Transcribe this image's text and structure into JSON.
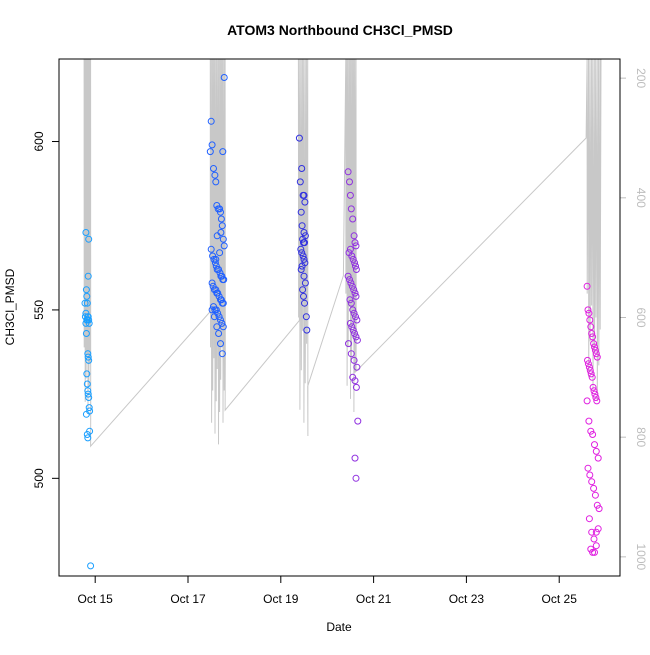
{
  "chart_data": {
    "type": "scatter",
    "title": "ATOM3 Northbound CH3Cl_PMSD",
    "xlabel": "Date",
    "ylabel": "CH3Cl_PMSD",
    "x_ticks": [
      "Oct 15",
      "Oct 17",
      "Oct 19",
      "Oct 21",
      "Oct 23",
      "Oct 25"
    ],
    "x_tick_days": [
      15,
      17,
      19,
      21,
      23,
      25
    ],
    "xlim": [
      14.22,
      26.31
    ],
    "y_ticks": [
      500,
      550,
      600
    ],
    "ylim": [
      471,
      624.5
    ],
    "y2_ticks": [
      200,
      400,
      600,
      800,
      1000
    ],
    "y2lim": [
      1032,
      168
    ],
    "grid": false,
    "colors": {
      "points_low": "#00bfff",
      "points_mid": "#0000ff",
      "points_high": "#ff00ff",
      "altitude_line": "#c8c8c8"
    },
    "series": [
      {
        "values_x": [
          14.8,
          14.81,
          14.82,
          14.83,
          14.78,
          14.8,
          14.84,
          14.85,
          14.83,
          14.82,
          14.79,
          14.8,
          14.81,
          14.86,
          14.87,
          14.84,
          14.85,
          14.86,
          14.82,
          14.83,
          14.84,
          14.85,
          14.86,
          14.87,
          14.88,
          14.81,
          14.85,
          14.86,
          14.83,
          14.84,
          14.9,
          14.88
        ],
        "values_y": [
          573,
          556,
          554,
          552,
          552,
          549,
          548,
          548,
          547,
          547,
          548,
          546,
          543,
          547,
          546,
          537,
          536,
          535,
          531,
          528,
          526,
          525,
          524,
          521,
          520,
          519,
          560,
          571,
          513,
          512,
          474,
          514
        ],
        "color": "#1a9fff"
      },
      {
        "values_x": [
          17.5,
          17.52,
          17.48,
          17.55,
          17.58,
          17.6,
          17.62,
          17.65,
          17.68,
          17.7,
          17.72,
          17.74,
          17.76,
          17.78,
          17.5,
          17.53,
          17.56,
          17.59,
          17.61,
          17.63,
          17.66,
          17.69,
          17.71,
          17.73,
          17.75,
          17.77,
          17.52,
          17.54,
          17.57,
          17.6,
          17.62,
          17.64,
          17.67,
          17.7,
          17.72,
          17.74,
          17.76,
          17.55,
          17.58,
          17.61,
          17.64,
          17.67,
          17.7,
          17.73,
          17.76,
          17.52,
          17.57,
          17.62,
          17.66,
          17.7,
          17.74,
          17.6,
          17.68,
          17.63,
          17.71,
          17.75,
          17.78
        ],
        "values_y": [
          606,
          599,
          597,
          592,
          590,
          588,
          581,
          580,
          580,
          579,
          577,
          575,
          571,
          569,
          568,
          566,
          565,
          564,
          563,
          562,
          562,
          561,
          560,
          560,
          559,
          559,
          558,
          557,
          556,
          556,
          555,
          555,
          554,
          553,
          553,
          552,
          552,
          551,
          550,
          550,
          549,
          548,
          547,
          546,
          545,
          550,
          548,
          545,
          543,
          540,
          537,
          565,
          567,
          572,
          573,
          597,
          619
        ],
        "color": "#2060ff"
      },
      {
        "values_x": [
          19.4,
          19.45,
          19.42,
          19.48,
          19.5,
          19.52,
          19.44,
          19.46,
          19.5,
          19.53,
          19.47,
          19.49,
          19.51,
          19.43,
          19.45,
          19.48,
          19.5,
          19.52,
          19.46,
          19.44,
          19.5,
          19.53,
          19.47,
          19.49,
          19.51,
          19.55,
          19.56
        ],
        "values_y": [
          601,
          592,
          588,
          584,
          584,
          582,
          579,
          575,
          573,
          572,
          571,
          570,
          570,
          568,
          567,
          566,
          565,
          564,
          563,
          562,
          560,
          558,
          556,
          554,
          552,
          548,
          544
        ],
        "color": "#3030e0"
      },
      {
        "values_x": [
          20.45,
          20.48,
          20.5,
          20.52,
          20.55,
          20.58,
          20.6,
          20.62,
          20.5,
          20.47,
          20.53,
          20.56,
          20.59,
          20.61,
          20.63,
          20.45,
          20.48,
          20.51,
          20.54,
          20.57,
          20.6,
          20.62,
          20.49,
          20.52,
          20.55,
          20.58,
          20.61,
          20.64,
          20.5,
          20.53,
          20.56,
          20.59,
          20.62,
          20.65,
          20.46,
          20.52,
          20.58,
          20.64,
          20.55,
          20.6,
          20.63,
          20.66,
          20.6,
          20.62
        ],
        "values_y": [
          591,
          588,
          584,
          580,
          577,
          572,
          570,
          569,
          568,
          567,
          566,
          565,
          564,
          563,
          562,
          560,
          559,
          558,
          557,
          556,
          555,
          554,
          553,
          552,
          550,
          549,
          548,
          547,
          546,
          545,
          544,
          543,
          542,
          541,
          540,
          537,
          535,
          533,
          530,
          529,
          527,
          517,
          506,
          500
        ],
        "color": "#9030e0"
      },
      {
        "values_x": [
          25.6,
          25.62,
          25.64,
          25.66,
          25.68,
          25.7,
          25.72,
          25.74,
          25.76,
          25.78,
          25.8,
          25.82,
          25.61,
          25.63,
          25.65,
          25.67,
          25.69,
          25.71,
          25.73,
          25.75,
          25.77,
          25.79,
          25.81,
          25.6,
          25.64,
          25.68,
          25.72,
          25.76,
          25.8,
          25.84,
          25.62,
          25.66,
          25.7,
          25.74,
          25.78,
          25.82,
          25.86,
          25.65,
          25.7,
          25.75,
          25.8,
          25.68,
          25.72,
          25.76,
          25.8,
          25.84
        ],
        "values_y": [
          557,
          550,
          549,
          547,
          545,
          543,
          542,
          540,
          539,
          538,
          537,
          536,
          535,
          534,
          533,
          532,
          531,
          530,
          527,
          526,
          525,
          524,
          523,
          523,
          517,
          514,
          513,
          510,
          508,
          506,
          503,
          501,
          499,
          497,
          495,
          492,
          491,
          488,
          484,
          482,
          480,
          479,
          478,
          478,
          484,
          485
        ],
        "color": "#e020e0"
      }
    ]
  }
}
